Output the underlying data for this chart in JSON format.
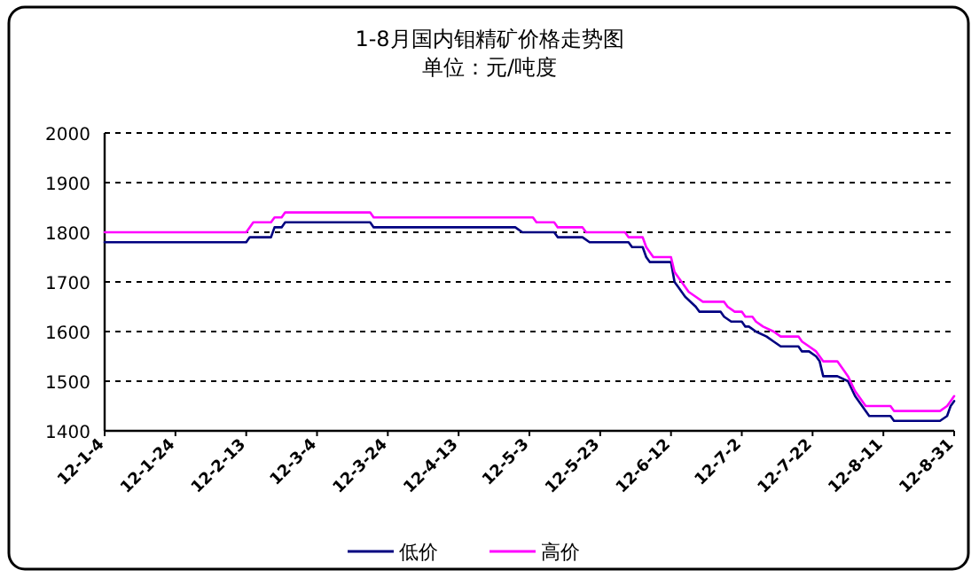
{
  "chart_data": {
    "type": "line",
    "title": "1-8月国内钼精矿价格走势图",
    "subtitle": "单位：元/吨度",
    "xlim": [
      "--01-04",
      "--08-31"
    ],
    "xticks": [
      {
        "value": "--01-04",
        "label": "12-1-4"
      },
      {
        "value": "--01-24",
        "label": "12-1-24"
      },
      {
        "value": "--02-13",
        "label": "12-2-13"
      },
      {
        "value": "--03-04",
        "label": "12-3-4"
      },
      {
        "value": "--03-24",
        "label": "12-3-24"
      },
      {
        "value": "--04-13",
        "label": "12-4-13"
      },
      {
        "value": "--05-03",
        "label": "12-5-3"
      },
      {
        "value": "--05-23",
        "label": "12-5-23"
      },
      {
        "value": "--06-12",
        "label": "12-6-12"
      },
      {
        "value": "--07-02",
        "label": "12-7-2"
      },
      {
        "value": "--07-22",
        "label": "12-7-22"
      },
      {
        "value": "--08-11",
        "label": "12-8-11"
      },
      {
        "value": "--08-31",
        "label": "12-8-31"
      }
    ],
    "ylim": [
      1400,
      2000
    ],
    "yticks": [
      1400,
      1500,
      1600,
      1700,
      1800,
      1900,
      2000
    ],
    "grid": "y",
    "legend": "bottom",
    "marker": "none",
    "line_style": "solid",
    "series": [
      {
        "name": "低价",
        "color": "#000080",
        "x": [
          "--01-04",
          "--02-13",
          "--02-14",
          "--02-20",
          "--02-21",
          "--02-23",
          "--02-24",
          "--03-19",
          "--03-20",
          "--04-29",
          "--05-01",
          "--05-10",
          "--05-11",
          "--05-18",
          "--05-20",
          "--05-31",
          "--06-01",
          "--06-04",
          "--06-05",
          "--06-06",
          "--06-12",
          "--06-13",
          "--06-14",
          "--06-16",
          "--06-19",
          "--06-20",
          "--06-26",
          "--06-27",
          "--06-29",
          "--07-02",
          "--07-03",
          "--07-04",
          "--07-06",
          "--07-09",
          "--07-11",
          "--07-13",
          "--07-18",
          "--07-19",
          "--07-21",
          "--07-23",
          "--07-24",
          "--07-25",
          "--07-29",
          "--08-01",
          "--08-03",
          "--08-05",
          "--08-07",
          "--08-13",
          "--08-14",
          "--08-27",
          "--08-29",
          "--08-30",
          "--08-31"
        ],
        "values": [
          1780,
          1780,
          1790,
          1790,
          1810,
          1810,
          1820,
          1820,
          1810,
          1810,
          1800,
          1800,
          1790,
          1790,
          1780,
          1780,
          1770,
          1770,
          1750,
          1740,
          1740,
          1700,
          1690,
          1670,
          1650,
          1640,
          1640,
          1630,
          1620,
          1620,
          1610,
          1610,
          1600,
          1590,
          1580,
          1570,
          1570,
          1560,
          1560,
          1550,
          1540,
          1510,
          1510,
          1500,
          1470,
          1450,
          1430,
          1430,
          1420,
          1420,
          1430,
          1450,
          1460
        ]
      },
      {
        "name": "高价",
        "color": "#ff00ff",
        "x": [
          "--01-04",
          "--02-13",
          "--02-15",
          "--02-20",
          "--02-21",
          "--02-23",
          "--02-24",
          "--03-19",
          "--03-20",
          "--05-04",
          "--05-05",
          "--05-10",
          "--05-11",
          "--05-18",
          "--05-19",
          "--05-30",
          "--05-31",
          "--06-04",
          "--06-05",
          "--06-07",
          "--06-12",
          "--06-13",
          "--06-15",
          "--06-17",
          "--06-19",
          "--06-21",
          "--06-27",
          "--06-28",
          "--06-30",
          "--07-02",
          "--07-03",
          "--07-05",
          "--07-06",
          "--07-08",
          "--07-11",
          "--07-13",
          "--07-18",
          "--07-19",
          "--07-21",
          "--07-23",
          "--07-25",
          "--07-29",
          "--07-31",
          "--08-01",
          "--08-03",
          "--08-04",
          "--08-06",
          "--08-13",
          "--08-14",
          "--08-27",
          "--08-29",
          "--08-30",
          "--08-31"
        ],
        "values": [
          1800,
          1800,
          1820,
          1820,
          1830,
          1830,
          1840,
          1840,
          1830,
          1830,
          1820,
          1820,
          1810,
          1810,
          1800,
          1800,
          1790,
          1790,
          1770,
          1750,
          1750,
          1720,
          1700,
          1680,
          1670,
          1660,
          1660,
          1650,
          1640,
          1640,
          1630,
          1630,
          1620,
          1610,
          1600,
          1590,
          1590,
          1580,
          1570,
          1560,
          1540,
          1540,
          1520,
          1510,
          1480,
          1470,
          1450,
          1450,
          1440,
          1440,
          1450,
          1460,
          1470
        ]
      }
    ]
  }
}
